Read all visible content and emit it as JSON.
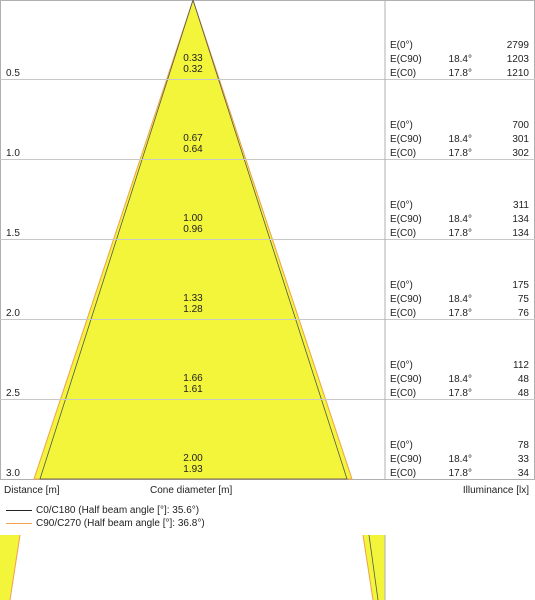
{
  "colors": {
    "cone_fill": "#f3f53a",
    "c0_line": "#222222",
    "c90_line": "#f0a050",
    "grid": "#c8c8c8",
    "border": "#b0b0b0"
  },
  "rows": [
    {
      "distance": "0.5",
      "d_c90": "0.33",
      "d_c0": "0.32",
      "e0": "2799",
      "e_c90": "1203",
      "e_c0": "1210"
    },
    {
      "distance": "1.0",
      "d_c90": "0.67",
      "d_c0": "0.64",
      "e0": "700",
      "e_c90": "301",
      "e_c0": "302"
    },
    {
      "distance": "1.5",
      "d_c90": "1.00",
      "d_c0": "0.96",
      "e0": "311",
      "e_c90": "134",
      "e_c0": "134"
    },
    {
      "distance": "2.0",
      "d_c90": "1.33",
      "d_c0": "1.28",
      "e0": "175",
      "e_c90": "75",
      "e_c0": "76"
    },
    {
      "distance": "2.5",
      "d_c90": "1.66",
      "d_c0": "1.61",
      "e0": "112",
      "e_c90": "48",
      "e_c0": "48"
    },
    {
      "distance": "3.0",
      "d_c90": "2.00",
      "d_c0": "1.93",
      "e0": "78",
      "e_c90": "33",
      "e_c0": "34"
    }
  ],
  "labels": {
    "e0": "E(0°)",
    "e_c90": "E(C90)",
    "e_c0": "E(C0)",
    "angle_c90": "18.4°",
    "angle_c0": "17.8°"
  },
  "axis": {
    "distance": "Distance [m]",
    "cone_diameter": "Cone diameter [m]",
    "illuminance": "Illuminance [lx]"
  },
  "legend": [
    {
      "text": "C0/C180 (Half beam angle [°]: 35.6°)"
    },
    {
      "text": "C90/C270 (Half beam angle [°]: 36.8°)"
    }
  ]
}
